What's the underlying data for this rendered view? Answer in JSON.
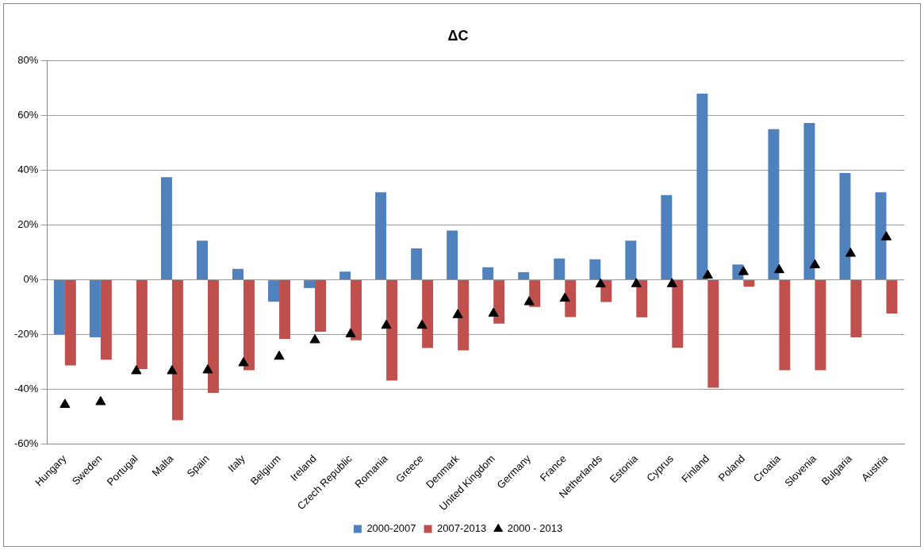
{
  "chart_data": {
    "type": "bar",
    "title": "ΔC",
    "categories": [
      "Hungary",
      "Sweden",
      "Portugal",
      "Malta",
      "Spain",
      "Italy",
      "Belgium",
      "Ireland",
      "Czech Republic",
      "Romania",
      "Greece",
      "Denmark",
      "United Kingdom",
      "Germany",
      "France",
      "Netherlands",
      "Estonia",
      "Cyprus",
      "Finland",
      "Poland",
      "Croatia",
      "Slovenia",
      "Bulgaria",
      "Austria"
    ],
    "series": [
      {
        "name": "2000-2007",
        "color": "#4f81bd",
        "values": [
          -20,
          -21,
          null,
          37.5,
          14.3,
          4,
          -8,
          -3,
          3,
          32,
          11.5,
          18,
          4.6,
          2.8,
          7.8,
          7.5,
          14.3,
          31,
          68,
          5.6,
          55,
          57.3,
          39,
          32
        ]
      },
      {
        "name": "2007-2013",
        "color": "#c0504d",
        "values": [
          -31.3,
          -29.2,
          -32.6,
          -51.3,
          -41.3,
          -33,
          -21.6,
          -19,
          -22.1,
          -36.8,
          -24.9,
          -25.8,
          -16,
          -9.9,
          -13.6,
          -8.1,
          -13.7,
          -24.8,
          -39.4,
          -2.5,
          -33,
          -33,
          -21,
          -12.3
        ]
      },
      {
        "name": "2000 - 2013",
        "type": "scatter",
        "marker": "triangle",
        "color": "#000000",
        "values": [
          -45.6,
          -44.6,
          -33.3,
          -33.3,
          -33,
          -30.4,
          -28,
          -22,
          -19.8,
          -16.7,
          -16.7,
          -12.8,
          -12.3,
          -8.1,
          -6.8,
          -1.6,
          -1.5,
          -1.5,
          1.6,
          2.9,
          3.6,
          5.4,
          9.6,
          15.6
        ]
      }
    ],
    "ylim": [
      -60,
      80
    ],
    "yticks": [
      {
        "value": -60,
        "label": "-60%"
      },
      {
        "value": -40,
        "label": "-40%"
      },
      {
        "value": -20,
        "label": "-20%"
      },
      {
        "value": 0,
        "label": "0%"
      },
      {
        "value": 20,
        "label": "20%"
      },
      {
        "value": 40,
        "label": "40%"
      },
      {
        "value": 60,
        "label": "60%"
      },
      {
        "value": 80,
        "label": "80%"
      }
    ],
    "grid": "y",
    "legend": "bottom"
  }
}
